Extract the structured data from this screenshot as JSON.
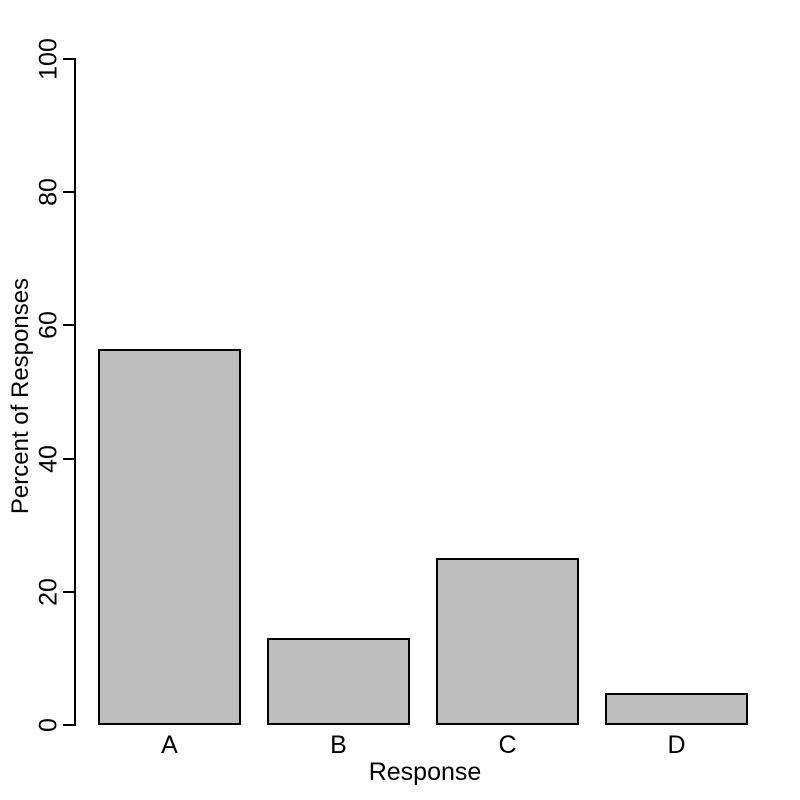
{
  "chart_data": {
    "type": "bar",
    "title": "",
    "categories": [
      "A",
      "B",
      "C",
      "D"
    ],
    "values": [
      56.5,
      13.1,
      25.1,
      4.8
    ],
    "xlabel": "Response",
    "ylabel": "Percent of Responses",
    "ylim": [
      0,
      100
    ],
    "yticks": [
      0,
      20,
      40,
      60,
      80,
      100
    ],
    "grid": false,
    "legend": "none",
    "bar_fill_color": "#bebebe",
    "bar_border_color": "#000000",
    "axis_color": "#000000",
    "text_color": "#000000",
    "background_color": "#ffffff"
  }
}
